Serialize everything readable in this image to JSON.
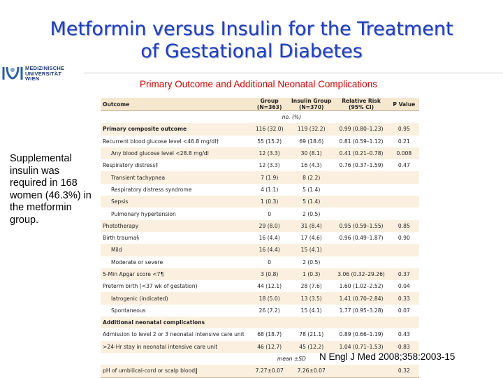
{
  "slide": {
    "title_line1": "Metformin versus Insulin for the Treatment",
    "title_line2": "of Gestational Diabetes",
    "subtitle": "Primary Outcome and Additional Neonatal Complications",
    "side_note": "Supplemental insulin was required in 168 women (46.3%) in the metformin group.",
    "citation": "N Engl J Med 2008;358:2003-15",
    "logo_line1": "MEDIZINISCHE",
    "logo_line2": "UNIVERSITÄT",
    "logo_line3": "WIEN",
    "logo_icon": "university-logo-icon"
  },
  "table": {
    "headers": {
      "outcome": "Outcome",
      "group_line1": "Group",
      "group_line2": "(N=363)",
      "insulin_line1": "Insulin Group",
      "insulin_line2": "(N=370)",
      "rr_line1": "Relative Risk",
      "rr_line2": "(95% CI)",
      "p": "P Value"
    },
    "unit_count": "no. (%)",
    "unit_mean": "mean ±SD",
    "rows": [
      {
        "outcome": "Primary composite outcome",
        "group": "116 (32.0)",
        "insulin": "119 (32.2)",
        "rr": "0.99 (0.80–1.23)",
        "p": "0.95"
      },
      {
        "outcome": "Recurrent blood glucose level <46.8 mg/dl†",
        "group": "55 (15.2)",
        "insulin": "69 (18.6)",
        "rr": "0.81 (0.59–1.12)",
        "p": "0.21"
      },
      {
        "outcome": "Any blood glucose level <28.8 mg/dl",
        "group": "12 (3.3)",
        "insulin": "30 (8.1)",
        "rr": "0.41 (0.21–0.78)",
        "p": "0.008"
      },
      {
        "outcome": "Respiratory distress‡",
        "group": "12 (3.3)",
        "insulin": "16 (4.3)",
        "rr": "0.76 (0.37–1.59)",
        "p": "0.47"
      },
      {
        "outcome": "Transient tachypnea",
        "group": "7 (1.9)",
        "insulin": "8 (2.2)",
        "rr": "",
        "p": ""
      },
      {
        "outcome": "Respiratory distress syndrome",
        "group": "4 (1.1)",
        "insulin": "5 (1.4)",
        "rr": "",
        "p": ""
      },
      {
        "outcome": "Sepsis",
        "group": "1 (0.3)",
        "insulin": "5 (1.4)",
        "rr": "",
        "p": ""
      },
      {
        "outcome": "Pulmonary hypertension",
        "group": "0",
        "insulin": "2 (0.5)",
        "rr": "",
        "p": ""
      },
      {
        "outcome": "Phototherapy",
        "group": "29 (8.0)",
        "insulin": "31 (8.4)",
        "rr": "0.95 (0.59–1.55)",
        "p": "0.85"
      },
      {
        "outcome": "Birth trauma§",
        "group": "16 (4.4)",
        "insulin": "17 (4.6)",
        "rr": "0.96 (0.49–1.87)",
        "p": "0.90"
      },
      {
        "outcome": "Mild",
        "group": "16 (4.4)",
        "insulin": "15 (4.1)",
        "rr": "",
        "p": ""
      },
      {
        "outcome": "Moderate or severe",
        "group": "0",
        "insulin": "2 (0.5)",
        "rr": "",
        "p": ""
      },
      {
        "outcome": "5-Min Apgar score <7¶",
        "group": "3 (0.8)",
        "insulin": "1 (0.3)",
        "rr": "3.06 (0.32–29.26)",
        "p": "0.37"
      },
      {
        "outcome": "Preterm birth (<37 wk of gestation)",
        "group": "44 (12.1)",
        "insulin": "28 (7.6)",
        "rr": "1.60 (1.02–2.52)",
        "p": "0.04"
      },
      {
        "outcome": "Iatrogenic (indicated)",
        "group": "18 (5.0)",
        "insulin": "13 (3.5)",
        "rr": "1.41 (0.70–2.84)",
        "p": "0.33"
      },
      {
        "outcome": "Spontaneous",
        "group": "26 (7.2)",
        "insulin": "15 (4.1)",
        "rr": "1.77 (0.95–3.28)",
        "p": "0.07"
      },
      {
        "outcome": "Additional neonatal complications",
        "group": "",
        "insulin": "",
        "rr": "",
        "p": ""
      },
      {
        "outcome": "Admission to level 2 or 3 neonatal intensive care unit",
        "group": "68 (18.7)",
        "insulin": "78 (21.1)",
        "rr": "0.89 (0.66–1.19)",
        "p": "0.43"
      },
      {
        "outcome": ">24-Hr stay in neonatal intensive care unit",
        "group": "46 (12.7)",
        "insulin": "45 (12.2)",
        "rr": "1.04 (0.71–1.53)",
        "p": "0.83"
      },
      {
        "outcome": "pH of umbilical-cord or scalp blood‖",
        "group": "7.27±0.07",
        "insulin": "7.26±0.07",
        "rr": "",
        "p": "0.32"
      }
    ]
  }
}
